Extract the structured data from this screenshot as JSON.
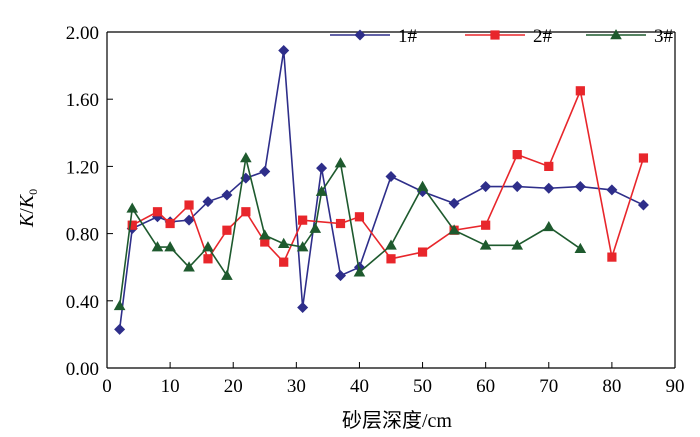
{
  "chart_data": {
    "type": "line",
    "title": "",
    "xlabel": "砂层深度/cm",
    "ylabel": {
      "k": "K",
      "slash": "/",
      "k0": "K",
      "sub": "0"
    },
    "xlim": [
      0,
      90
    ],
    "ylim": [
      0,
      2.0
    ],
    "xticks": [
      "0",
      "10",
      "20",
      "30",
      "40",
      "50",
      "60",
      "70",
      "80",
      "90"
    ],
    "xtick_values": [
      0,
      10,
      20,
      30,
      40,
      50,
      60,
      70,
      80,
      90
    ],
    "yticks": [
      "0.00",
      "0.40",
      "0.80",
      "1.20",
      "1.60",
      "2.00"
    ],
    "ytick_values": [
      0,
      0.4,
      0.8,
      1.2,
      1.6,
      2.0
    ],
    "grid": false,
    "legend_position": "top-right",
    "series": [
      {
        "name": "1#",
        "color": "#2e2e8a",
        "marker": "diamond",
        "x": [
          2,
          4,
          8,
          10,
          13,
          16,
          19,
          22,
          25,
          28,
          31,
          34,
          37,
          40,
          45,
          50,
          55,
          60,
          65,
          70,
          75,
          80,
          85
        ],
        "y": [
          0.23,
          0.83,
          0.9,
          0.87,
          0.88,
          0.99,
          1.03,
          1.13,
          1.17,
          1.89,
          0.36,
          1.19,
          0.55,
          0.6,
          1.14,
          1.05,
          0.98,
          1.08,
          1.08,
          1.07,
          1.08,
          1.06,
          0.97
        ]
      },
      {
        "name": "2#",
        "color": "#e8262b",
        "marker": "square",
        "x": [
          4,
          8,
          10,
          13,
          16,
          19,
          22,
          25,
          28,
          31,
          37,
          40,
          45,
          50,
          55,
          60,
          65,
          70,
          75,
          80,
          85
        ],
        "y": [
          0.85,
          0.93,
          0.86,
          0.97,
          0.65,
          0.82,
          0.93,
          0.75,
          0.63,
          0.88,
          0.86,
          0.9,
          0.65,
          0.69,
          0.82,
          0.85,
          1.27,
          1.2,
          1.65,
          0.66,
          1.25
        ]
      },
      {
        "name": "3#",
        "color": "#1e5a2e",
        "marker": "triangle",
        "x": [
          2,
          4,
          8,
          10,
          13,
          16,
          19,
          22,
          25,
          28,
          31,
          33,
          34,
          37,
          40,
          45,
          50,
          55,
          60,
          65,
          70,
          75
        ],
        "y": [
          0.37,
          0.95,
          0.72,
          0.72,
          0.6,
          0.72,
          0.55,
          1.25,
          0.79,
          0.74,
          0.72,
          0.83,
          1.05,
          1.22,
          0.57,
          0.73,
          1.08,
          0.82,
          0.73,
          0.73,
          0.84,
          0.71
        ]
      }
    ]
  }
}
